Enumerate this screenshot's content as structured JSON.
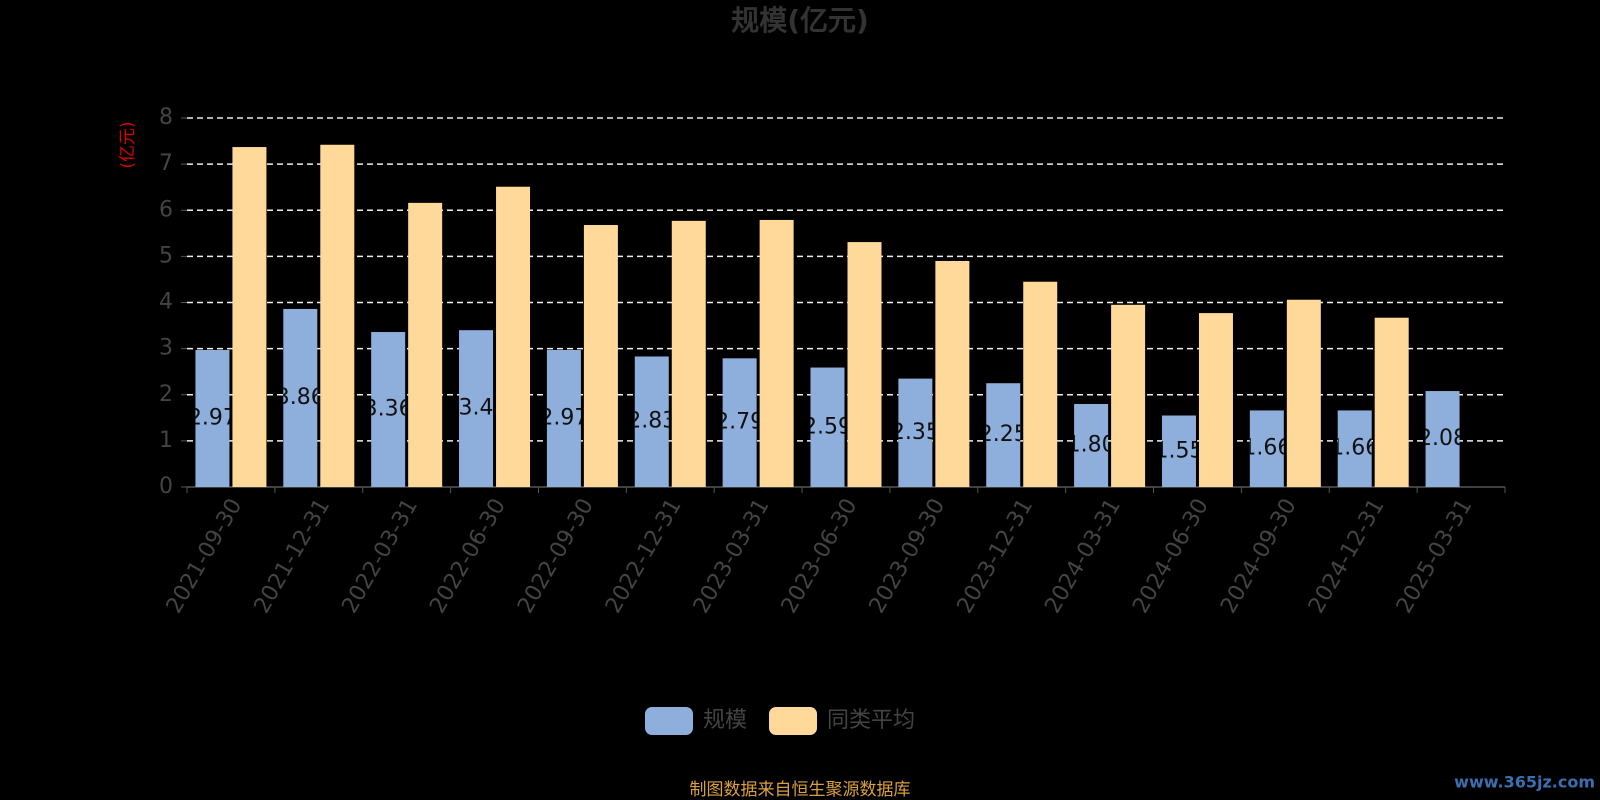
{
  "chart_data": {
    "type": "bar",
    "title": "规模(亿元)",
    "y_label": "(亿元)",
    "categories": [
      "2021-09-30",
      "2021-12-31",
      "2022-03-31",
      "2022-06-30",
      "2022-09-30",
      "2022-12-31",
      "2023-03-31",
      "2023-06-30",
      "2023-09-30",
      "2023-12-31",
      "2024-03-31",
      "2024-06-30",
      "2024-09-30",
      "2024-12-31",
      "2025-03-31"
    ],
    "series": [
      {
        "name": "规模",
        "color": "#8eaedc",
        "values": [
          2.97,
          3.86,
          3.36,
          3.4,
          2.97,
          2.83,
          2.79,
          2.59,
          2.35,
          2.25,
          1.8,
          1.55,
          1.66,
          1.66,
          2.08
        ],
        "value_labels": [
          "2.97",
          "3.86",
          "3.36",
          "3.4",
          "2.97",
          "2.83",
          "2.79",
          "2.59",
          "2.35",
          "2.25",
          "1.80",
          "1.55",
          "1.66",
          "1.66",
          "2.08"
        ]
      },
      {
        "name": "同类平均",
        "color": "#ffd99a",
        "values": [
          7.37,
          7.42,
          6.16,
          6.51,
          5.68,
          5.77,
          5.79,
          5.31,
          4.9,
          4.45,
          3.95,
          3.77,
          4.06,
          3.67,
          null
        ]
      }
    ],
    "ylim": [
      0,
      8
    ],
    "yticks": [
      0,
      1,
      2,
      3,
      4,
      5,
      6,
      7,
      8
    ],
    "grid": true,
    "legend": "bottom",
    "footer": "制图数据来自恒生聚源数据库",
    "watermark": "www.365jz.com"
  }
}
